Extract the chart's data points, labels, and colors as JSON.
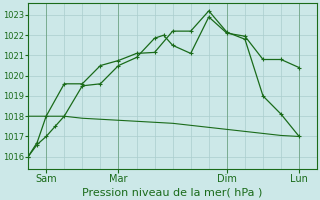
{
  "bg_color": "#cce8e8",
  "grid_color": "#aacece",
  "line_color": "#1a6b1a",
  "xlabel": "Pression niveau de la mer( hPa )",
  "xlabel_fontsize": 8,
  "yticks": [
    1016,
    1017,
    1018,
    1019,
    1020,
    1021,
    1022,
    1023
  ],
  "ytick_fontsize": 6,
  "xtick_labels": [
    "Sam",
    "Mar",
    "Dim",
    "Lun"
  ],
  "xtick_positions": [
    2,
    10,
    22,
    30
  ],
  "xlim": [
    0,
    32
  ],
  "ylim": [
    1015.4,
    1023.6
  ],
  "line1_x": [
    0,
    1,
    2,
    3,
    4,
    6,
    8,
    10,
    12,
    14,
    15,
    16,
    18,
    20,
    22,
    24,
    26,
    28,
    30
  ],
  "line1_y": [
    1016.0,
    1016.6,
    1017.0,
    1017.5,
    1018.0,
    1019.5,
    1019.6,
    1020.5,
    1020.9,
    1021.85,
    1022.0,
    1021.5,
    1021.1,
    1022.9,
    1022.1,
    1021.95,
    1020.8,
    1020.8,
    1020.4
  ],
  "line2_x": [
    0,
    1,
    2,
    4,
    6,
    8,
    10,
    12,
    14,
    16,
    18,
    20,
    22,
    24,
    26,
    28,
    30
  ],
  "line2_y": [
    1016.0,
    1016.7,
    1018.0,
    1019.6,
    1019.6,
    1020.5,
    1020.75,
    1021.1,
    1021.15,
    1022.2,
    1022.2,
    1023.2,
    1022.15,
    1021.8,
    1019.0,
    1018.1,
    1017.0
  ],
  "line3_x": [
    0,
    2,
    4,
    6,
    8,
    10,
    12,
    14,
    16,
    18,
    20,
    22,
    24,
    26,
    28,
    30
  ],
  "line3_y": [
    1018.0,
    1018.0,
    1018.0,
    1017.9,
    1017.85,
    1017.8,
    1017.75,
    1017.7,
    1017.65,
    1017.55,
    1017.45,
    1017.35,
    1017.25,
    1017.15,
    1017.05,
    1017.0
  ],
  "vline_positions": [
    2,
    10,
    22,
    30
  ]
}
